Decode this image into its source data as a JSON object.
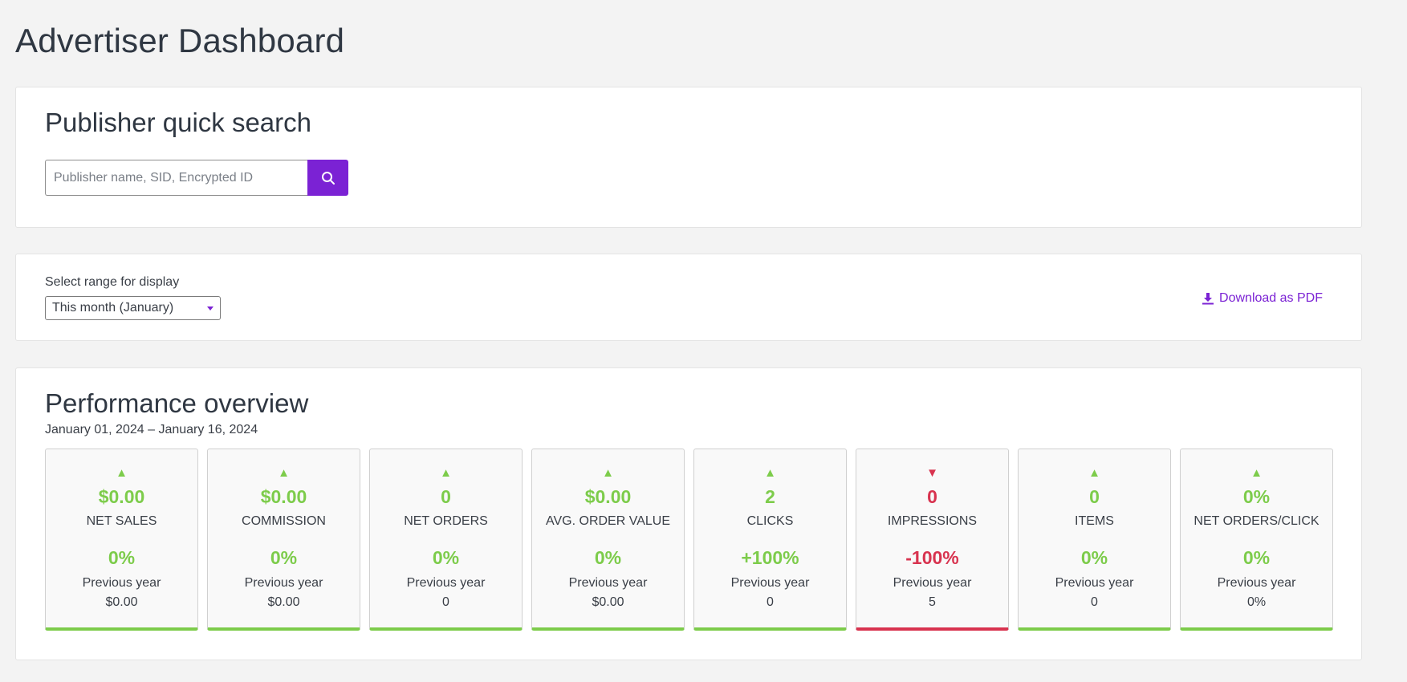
{
  "page_title": "Advertiser Dashboard",
  "search": {
    "title": "Publisher quick search",
    "placeholder": "Publisher name, SID, Encrypted ID",
    "value": ""
  },
  "range": {
    "label": "Select range for display",
    "selected": "This month (January)",
    "download_label": "Download as PDF"
  },
  "performance": {
    "title": "Performance overview",
    "date_range": "January 01, 2024 – January 16, 2024",
    "metrics": [
      {
        "value": "$0.00",
        "label": "NET SALES",
        "change": "0%",
        "prev_label": "Previous year",
        "prev_value": "$0.00",
        "trend": "up"
      },
      {
        "value": "$0.00",
        "label": "COMMISSION",
        "change": "0%",
        "prev_label": "Previous year",
        "prev_value": "$0.00",
        "trend": "up"
      },
      {
        "value": "0",
        "label": "NET ORDERS",
        "change": "0%",
        "prev_label": "Previous year",
        "prev_value": "0",
        "trend": "up"
      },
      {
        "value": "$0.00",
        "label": "AVG. ORDER VALUE",
        "change": "0%",
        "prev_label": "Previous year",
        "prev_value": "$0.00",
        "trend": "up"
      },
      {
        "value": "2",
        "label": "CLICKS",
        "change": "+100%",
        "prev_label": "Previous year",
        "prev_value": "0",
        "trend": "up"
      },
      {
        "value": "0",
        "label": "IMPRESSIONS",
        "change": "-100%",
        "prev_label": "Previous year",
        "prev_value": "5",
        "trend": "down"
      },
      {
        "value": "0",
        "label": "ITEMS",
        "change": "0%",
        "prev_label": "Previous year",
        "prev_value": "0",
        "trend": "up"
      },
      {
        "value": "0%",
        "label": "NET ORDERS/CLICK",
        "change": "0%",
        "prev_label": "Previous year",
        "prev_value": "0%",
        "trend": "up"
      }
    ]
  },
  "colors": {
    "accent": "#7b22d4",
    "positive": "#7dcc4b",
    "negative": "#d8334f"
  },
  "icons": {
    "search": "search-icon",
    "download": "download-icon",
    "up": "triangle-up-icon",
    "down": "triangle-down-icon"
  }
}
